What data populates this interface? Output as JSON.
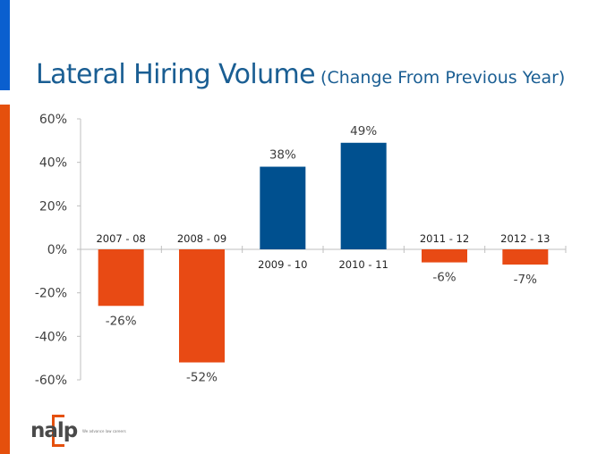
{
  "slide": {
    "accent_colors": {
      "top": "#0a5fcf",
      "side": "#e5500d"
    }
  },
  "logo": {
    "text": "nalp",
    "tagline": "We advance law careers"
  },
  "chart_data": {
    "type": "bar",
    "title": "Lateral Hiring Volume",
    "subtitle": "(Change From Previous Year)",
    "categories": [
      "2007 - 08",
      "2008 - 09",
      "2009 - 10",
      "2010 - 11",
      "2011 - 12",
      "2012 - 13"
    ],
    "values": [
      -26,
      -52,
      38,
      49,
      -6,
      -7
    ],
    "data_labels": [
      "-26%",
      "-52%",
      "38%",
      "49%",
      "-6%",
      "-7%"
    ],
    "ylim": [
      -60,
      60
    ],
    "yticks": [
      60,
      40,
      20,
      0,
      -20,
      -40,
      -60
    ],
    "ytick_labels": [
      "60%",
      "40%",
      "20%",
      "0%",
      "-20%",
      "-40%",
      "-60%"
    ],
    "xlabel": "",
    "ylabel": "",
    "grid": false,
    "legend": "none",
    "colors": {
      "positive": "#00508f",
      "negative": "#e84a14",
      "axis": "#bfbfbf"
    }
  }
}
